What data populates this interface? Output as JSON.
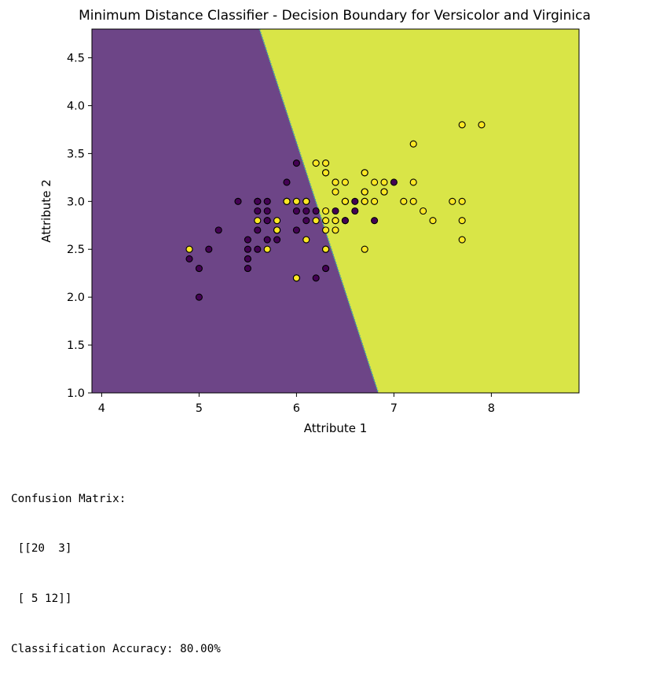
{
  "chart_data": {
    "type": "scatter",
    "title": "Minimum Distance Classifier - Decision Boundary for Versicolor and Virginica",
    "xlabel": "Attribute 1",
    "ylabel": "Attribute 2",
    "xlim": [
      3.9,
      8.9
    ],
    "ylim": [
      1.0,
      4.8
    ],
    "xticks": [
      4,
      5,
      6,
      7,
      8
    ],
    "xtick_labels": [
      "4",
      "5",
      "6",
      "7",
      "8"
    ],
    "yticks": [
      1.0,
      1.5,
      2.0,
      2.5,
      3.0,
      3.5,
      4.0,
      4.5
    ],
    "ytick_labels": [
      "1.0",
      "1.5",
      "2.0",
      "2.5",
      "3.0",
      "3.5",
      "4.0",
      "4.5"
    ],
    "grid": false,
    "colors": {
      "region_class_0": "#6d4587",
      "region_class_1": "#d9e547",
      "boundary": "#46a7a5",
      "point_class_0": "#440154",
      "point_class_1": "#fde725",
      "point_edge": "#000000"
    },
    "decision_boundary": [
      [
        5.62,
        4.8
      ],
      [
        6.84,
        1.0
      ]
    ],
    "points_class_0": [
      [
        7.0,
        3.2
      ],
      [
        6.4,
        3.2
      ],
      [
        6.9,
        3.1
      ],
      [
        5.5,
        2.3
      ],
      [
        6.5,
        2.8
      ],
      [
        5.7,
        2.8
      ],
      [
        6.3,
        3.3
      ],
      [
        4.9,
        2.4
      ],
      [
        6.6,
        2.9
      ],
      [
        5.2,
        2.7
      ],
      [
        5.0,
        2.0
      ],
      [
        5.9,
        3.0
      ],
      [
        6.0,
        2.2
      ],
      [
        6.1,
        2.9
      ],
      [
        5.6,
        2.9
      ],
      [
        6.7,
        3.1
      ],
      [
        5.6,
        3.0
      ],
      [
        5.8,
        2.7
      ],
      [
        6.2,
        2.2
      ],
      [
        5.6,
        2.5
      ],
      [
        5.9,
        3.2
      ],
      [
        6.1,
        2.8
      ],
      [
        6.3,
        2.5
      ],
      [
        6.4,
        2.9
      ],
      [
        6.6,
        3.0
      ],
      [
        6.8,
        2.8
      ],
      [
        6.7,
        3.0
      ],
      [
        6.0,
        2.9
      ],
      [
        5.7,
        2.6
      ],
      [
        5.5,
        2.4
      ],
      [
        5.5,
        2.4
      ],
      [
        5.8,
        2.7
      ],
      [
        6.0,
        2.7
      ],
      [
        5.4,
        3.0
      ],
      [
        6.0,
        3.4
      ],
      [
        6.7,
        3.1
      ],
      [
        6.3,
        2.3
      ],
      [
        5.6,
        3.0
      ],
      [
        5.5,
        2.5
      ],
      [
        5.5,
        2.6
      ],
      [
        6.1,
        3.0
      ],
      [
        5.8,
        2.6
      ],
      [
        5.0,
        2.3
      ],
      [
        5.6,
        2.7
      ],
      [
        5.7,
        3.0
      ],
      [
        5.7,
        2.9
      ],
      [
        6.2,
        2.9
      ],
      [
        5.1,
        2.5
      ],
      [
        5.7,
        2.8
      ],
      [
        6.5,
        2.8
      ]
    ],
    "points_class_1": [
      [
        6.3,
        3.3
      ],
      [
        5.8,
        2.7
      ],
      [
        7.1,
        3.0
      ],
      [
        6.3,
        2.9
      ],
      [
        6.5,
        3.0
      ],
      [
        7.6,
        3.0
      ],
      [
        4.9,
        2.5
      ],
      [
        7.3,
        2.9
      ],
      [
        6.7,
        2.5
      ],
      [
        7.2,
        3.6
      ],
      [
        6.5,
        3.2
      ],
      [
        6.4,
        2.7
      ],
      [
        6.8,
        3.0
      ],
      [
        5.7,
        2.5
      ],
      [
        5.8,
        2.8
      ],
      [
        6.4,
        3.2
      ],
      [
        6.5,
        3.0
      ],
      [
        7.7,
        3.8
      ],
      [
        7.7,
        2.6
      ],
      [
        6.0,
        2.2
      ],
      [
        6.9,
        3.2
      ],
      [
        5.6,
        2.8
      ],
      [
        7.7,
        2.8
      ],
      [
        6.3,
        2.7
      ],
      [
        6.7,
        3.3
      ],
      [
        7.2,
        3.2
      ],
      [
        6.2,
        2.8
      ],
      [
        6.1,
        3.0
      ],
      [
        6.4,
        2.8
      ],
      [
        7.2,
        3.0
      ],
      [
        7.4,
        2.8
      ],
      [
        7.9,
        3.8
      ],
      [
        6.4,
        2.8
      ],
      [
        6.3,
        2.8
      ],
      [
        6.1,
        2.6
      ],
      [
        7.7,
        3.0
      ],
      [
        6.3,
        3.4
      ],
      [
        6.4,
        3.1
      ],
      [
        6.0,
        3.0
      ],
      [
        6.9,
        3.1
      ],
      [
        6.7,
        3.1
      ],
      [
        6.9,
        3.1
      ],
      [
        5.8,
        2.7
      ],
      [
        6.8,
        3.2
      ],
      [
        6.7,
        3.3
      ],
      [
        6.7,
        3.0
      ],
      [
        6.3,
        2.5
      ],
      [
        6.5,
        3.0
      ],
      [
        6.2,
        3.4
      ],
      [
        5.9,
        3.0
      ]
    ]
  },
  "output": {
    "lines": [
      "Confusion Matrix:",
      " [[20  3]",
      " [ 5 12]]",
      "Classification Accuracy: 80.00%"
    ]
  }
}
